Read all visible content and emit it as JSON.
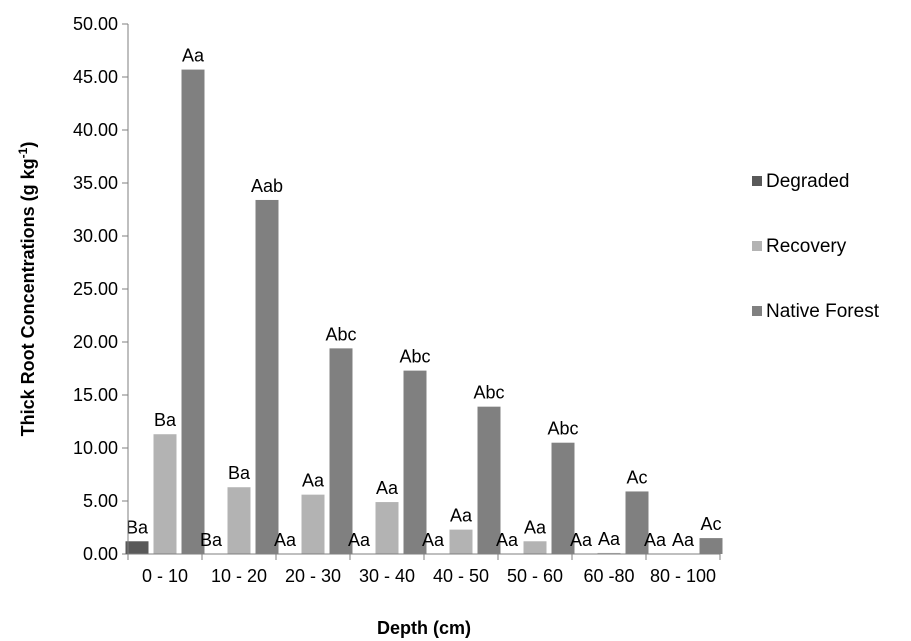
{
  "chart_data": {
    "type": "bar",
    "xlabel": "Depth (cm)",
    "ylabel_main": "Thick Root Concentrations (g kg",
    "ylabel_sup": "-1",
    "ylabel_close": ")",
    "ylim": [
      0,
      50
    ],
    "yticks": [
      "0.00",
      "5.00",
      "10.00",
      "15.00",
      "20.00",
      "25.00",
      "30.00",
      "35.00",
      "40.00",
      "45.00",
      "50.00"
    ],
    "categories": [
      "0 - 10",
      "10 - 20",
      "20 - 30",
      "30 - 40",
      "40 - 50",
      "50 - 60",
      "60 -80",
      "80 - 100"
    ],
    "grid": false,
    "legend_position": "right",
    "series": [
      {
        "name": "Degraded",
        "color": "#595959",
        "values": [
          1.2,
          0,
          0,
          0,
          0,
          0,
          0,
          0
        ],
        "labels": [
          "Ba",
          "Ba",
          "Aa",
          "Aa",
          "Aa",
          "Aa",
          "Aa",
          "Aa"
        ]
      },
      {
        "name": "Recovery",
        "color": "#b3b3b3",
        "values": [
          11.3,
          6.3,
          5.6,
          4.9,
          2.3,
          1.2,
          0.1,
          0
        ],
        "labels": [
          "Ba",
          "Ba",
          "Aa",
          "Aa",
          "Aa",
          "Aa",
          "Aa",
          "Aa"
        ]
      },
      {
        "name": "Native Forest",
        "color": "#808080",
        "values": [
          45.7,
          33.4,
          19.4,
          17.3,
          13.9,
          10.5,
          5.9,
          1.5
        ],
        "labels": [
          "Aa",
          "Aab",
          "Abc",
          "Abc",
          "Abc",
          "Abc",
          "Ac",
          "Ac"
        ]
      }
    ]
  }
}
